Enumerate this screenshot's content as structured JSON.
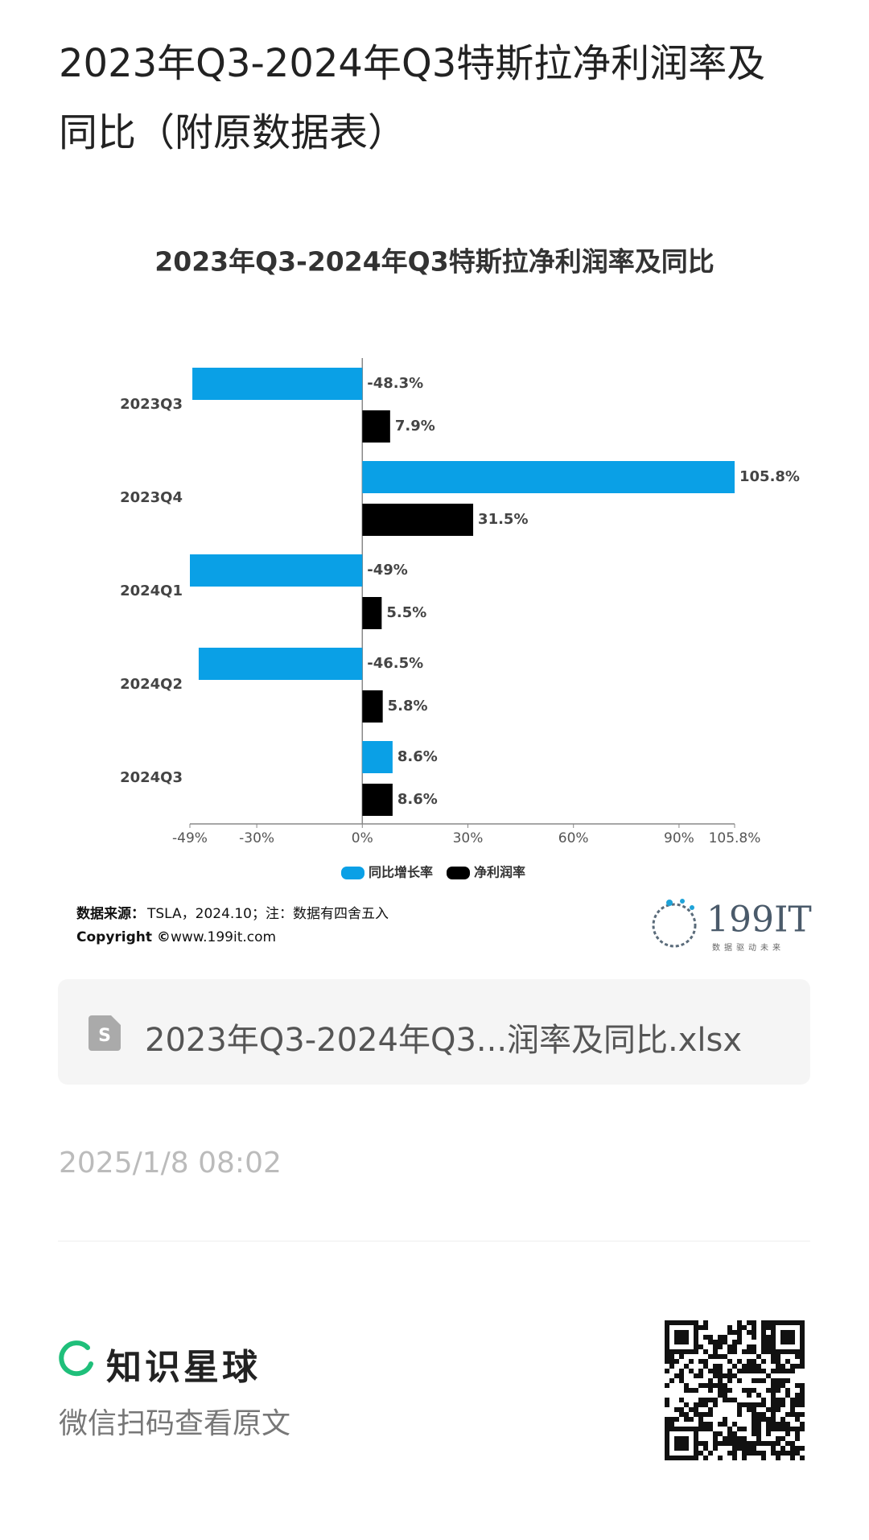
{
  "title": "2023年Q3-2024年Q3特斯拉净利润率及同比（附原数据表）",
  "chart_data": {
    "type": "hbar",
    "title": "2023年Q3-2024年Q3特斯拉净利润率及同比",
    "categories": [
      "2023Q3",
      "2023Q4",
      "2024Q1",
      "2024Q2",
      "2024Q3"
    ],
    "series": [
      {
        "name": "同比增长率",
        "color": "#0aa0e6",
        "values": [
          -48.3,
          105.8,
          -49,
          -46.5,
          8.6
        ],
        "value_labels": [
          "-48.3%",
          "105.8%",
          "-49%",
          "-46.5%",
          "8.6%"
        ]
      },
      {
        "name": "净利润率",
        "color": "#000000",
        "values": [
          7.9,
          31.5,
          5.5,
          5.8,
          8.6
        ],
        "value_labels": [
          "7.9%",
          "31.5%",
          "5.5%",
          "5.8%",
          "8.6%"
        ]
      }
    ],
    "xlim": [
      -49,
      105.8
    ],
    "xticks": [
      {
        "value": -49,
        "label": "-49%"
      },
      {
        "value": -30,
        "label": "-30%"
      },
      {
        "value": 0,
        "label": "0%"
      },
      {
        "value": 30,
        "label": "30%"
      },
      {
        "value": 60,
        "label": "60%"
      },
      {
        "value": 90,
        "label": "90%"
      },
      {
        "value": 105.8,
        "label": "105.8%"
      }
    ],
    "legend": "bottom"
  },
  "source_label": "数据来源：",
  "source_text": "TSLA，2024.10；注：数据有四舍五入",
  "copyright_label": "Copyright ©",
  "copyright_text": "www.199it.com",
  "logo": {
    "name": "199IT",
    "slogan": "数据驱动未来"
  },
  "attachment": "2023年Q3-2024年Q3...润率及同比.xlsx",
  "timestamp": "2025/1/8 08:02",
  "brand": "知识星球",
  "scan_hint": "微信扫码查看原文"
}
